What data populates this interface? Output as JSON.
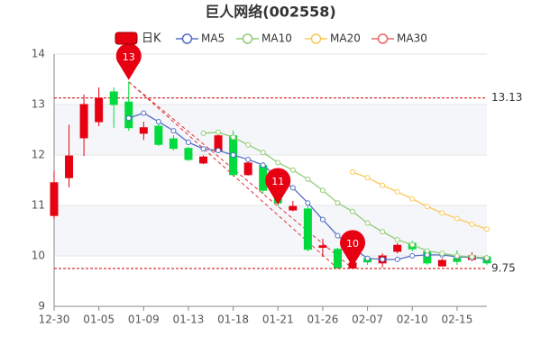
{
  "chart_data": {
    "type": "candlestick",
    "title": "巨人网络(002558)",
    "categories": [
      "12-30",
      null,
      null,
      "01-05",
      null,
      null,
      "01-09",
      null,
      null,
      "01-13",
      null,
      null,
      "01-18",
      null,
      null,
      "01-21",
      null,
      null,
      "01-26",
      null,
      null,
      "02-07",
      null,
      null,
      "02-10",
      null,
      null,
      "02-15",
      null,
      null
    ],
    "candle_name": "日K",
    "up_color": "#e60012",
    "down_color": "#00da3c",
    "open": [
      10.8,
      11.55,
      12.34,
      12.66,
      13.25,
      13.05,
      12.43,
      12.57,
      12.32,
      12.13,
      11.84,
      12.07,
      12.38,
      11.61,
      11.79,
      11.57,
      10.91,
      10.93,
      10.17,
      10.13,
      9.76,
      9.95,
      9.86,
      10.09,
      10.25,
      10.09,
      9.8,
      9.95,
      9.93,
      9.98
    ],
    "close": [
      11.45,
      11.98,
      13.0,
      13.12,
      13.0,
      12.54,
      12.54,
      12.21,
      12.13,
      11.91,
      11.96,
      12.38,
      11.61,
      11.84,
      11.3,
      11.05,
      10.98,
      10.13,
      10.2,
      9.77,
      9.86,
      9.88,
      10.0,
      10.21,
      10.14,
      9.86,
      9.91,
      9.89,
      10.0,
      9.86
    ],
    "high": [
      11.68,
      12.6,
      13.2,
      13.34,
      13.34,
      13.45,
      12.66,
      12.62,
      12.39,
      12.16,
      11.99,
      12.48,
      12.48,
      11.86,
      11.86,
      11.68,
      11.09,
      11.0,
      10.34,
      10.16,
      9.98,
      10.0,
      10.05,
      10.25,
      10.3,
      10.14,
      9.95,
      10.11,
      10.07,
      10.02
    ],
    "low": [
      10.73,
      11.36,
      11.98,
      12.57,
      12.54,
      12.48,
      12.3,
      12.18,
      12.09,
      11.88,
      11.82,
      12.04,
      11.57,
      11.59,
      11.23,
      10.98,
      10.88,
      10.09,
      9.98,
      9.75,
      9.75,
      9.82,
      9.77,
      10.05,
      10.09,
      9.82,
      9.79,
      9.82,
      9.89,
      9.82
    ],
    "series": [
      {
        "name": "MA5",
        "color": "#5470c6",
        "values": [
          null,
          null,
          null,
          null,
          null,
          12.73,
          12.83,
          12.66,
          12.48,
          12.25,
          12.12,
          12.09,
          12.0,
          11.91,
          11.8,
          11.55,
          11.35,
          11.05,
          10.72,
          10.4,
          10.16,
          9.95,
          9.93,
          9.93,
          10.0,
          10.02,
          10.02,
          9.98,
          9.97,
          9.94
        ]
      },
      {
        "name": "MA10",
        "color": "#91cc75",
        "values": [
          null,
          null,
          null,
          null,
          null,
          null,
          null,
          null,
          null,
          null,
          12.43,
          12.45,
          12.35,
          12.2,
          12.05,
          11.85,
          11.7,
          11.52,
          11.3,
          11.05,
          10.88,
          10.65,
          10.48,
          10.32,
          10.22,
          10.1,
          10.05,
          10.0,
          9.98,
          9.96
        ]
      },
      {
        "name": "MA20",
        "color": "#fac858",
        "values": [
          null,
          null,
          null,
          null,
          null,
          null,
          null,
          null,
          null,
          null,
          null,
          null,
          null,
          null,
          null,
          null,
          null,
          null,
          null,
          null,
          11.66,
          11.55,
          11.4,
          11.27,
          11.13,
          10.98,
          10.85,
          10.74,
          10.63,
          10.53
        ]
      },
      {
        "name": "MA30",
        "color": "#ee6666",
        "values": [
          null,
          null,
          null,
          null,
          null,
          null,
          null,
          null,
          null,
          null,
          null,
          null,
          null,
          null,
          null,
          null,
          null,
          null,
          null,
          null,
          null,
          null,
          null,
          null,
          null,
          null,
          null,
          null,
          null,
          null
        ]
      }
    ],
    "ref_lines": [
      13.13,
      9.75
    ],
    "annotations": [
      "13",
      "11",
      "10"
    ],
    "ylim": [
      9,
      14
    ],
    "yticks": [
      9,
      10,
      11,
      12,
      13,
      14
    ],
    "grid": true
  }
}
